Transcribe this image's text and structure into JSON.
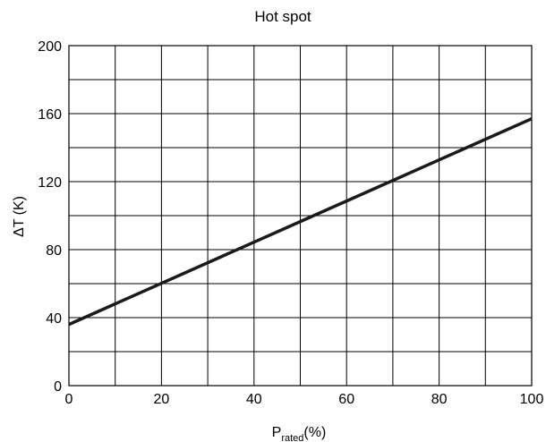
{
  "chart_data": {
    "type": "line",
    "title": "Hot spot",
    "xlabel": {
      "main": "P",
      "subscript": "rated",
      "suffix": "(%)"
    },
    "ylabel": "ΔT (K)",
    "xlim": [
      0,
      100
    ],
    "ylim": [
      0,
      200
    ],
    "x_ticks": [
      0,
      20,
      40,
      60,
      80,
      100
    ],
    "y_ticks": [
      0,
      40,
      80,
      120,
      160,
      200
    ],
    "grid": true,
    "series": [
      {
        "x": [
          0,
          100
        ],
        "y": [
          36,
          157
        ]
      }
    ],
    "colors": {
      "line": "#1a1a1a",
      "grid": "#000000"
    }
  }
}
